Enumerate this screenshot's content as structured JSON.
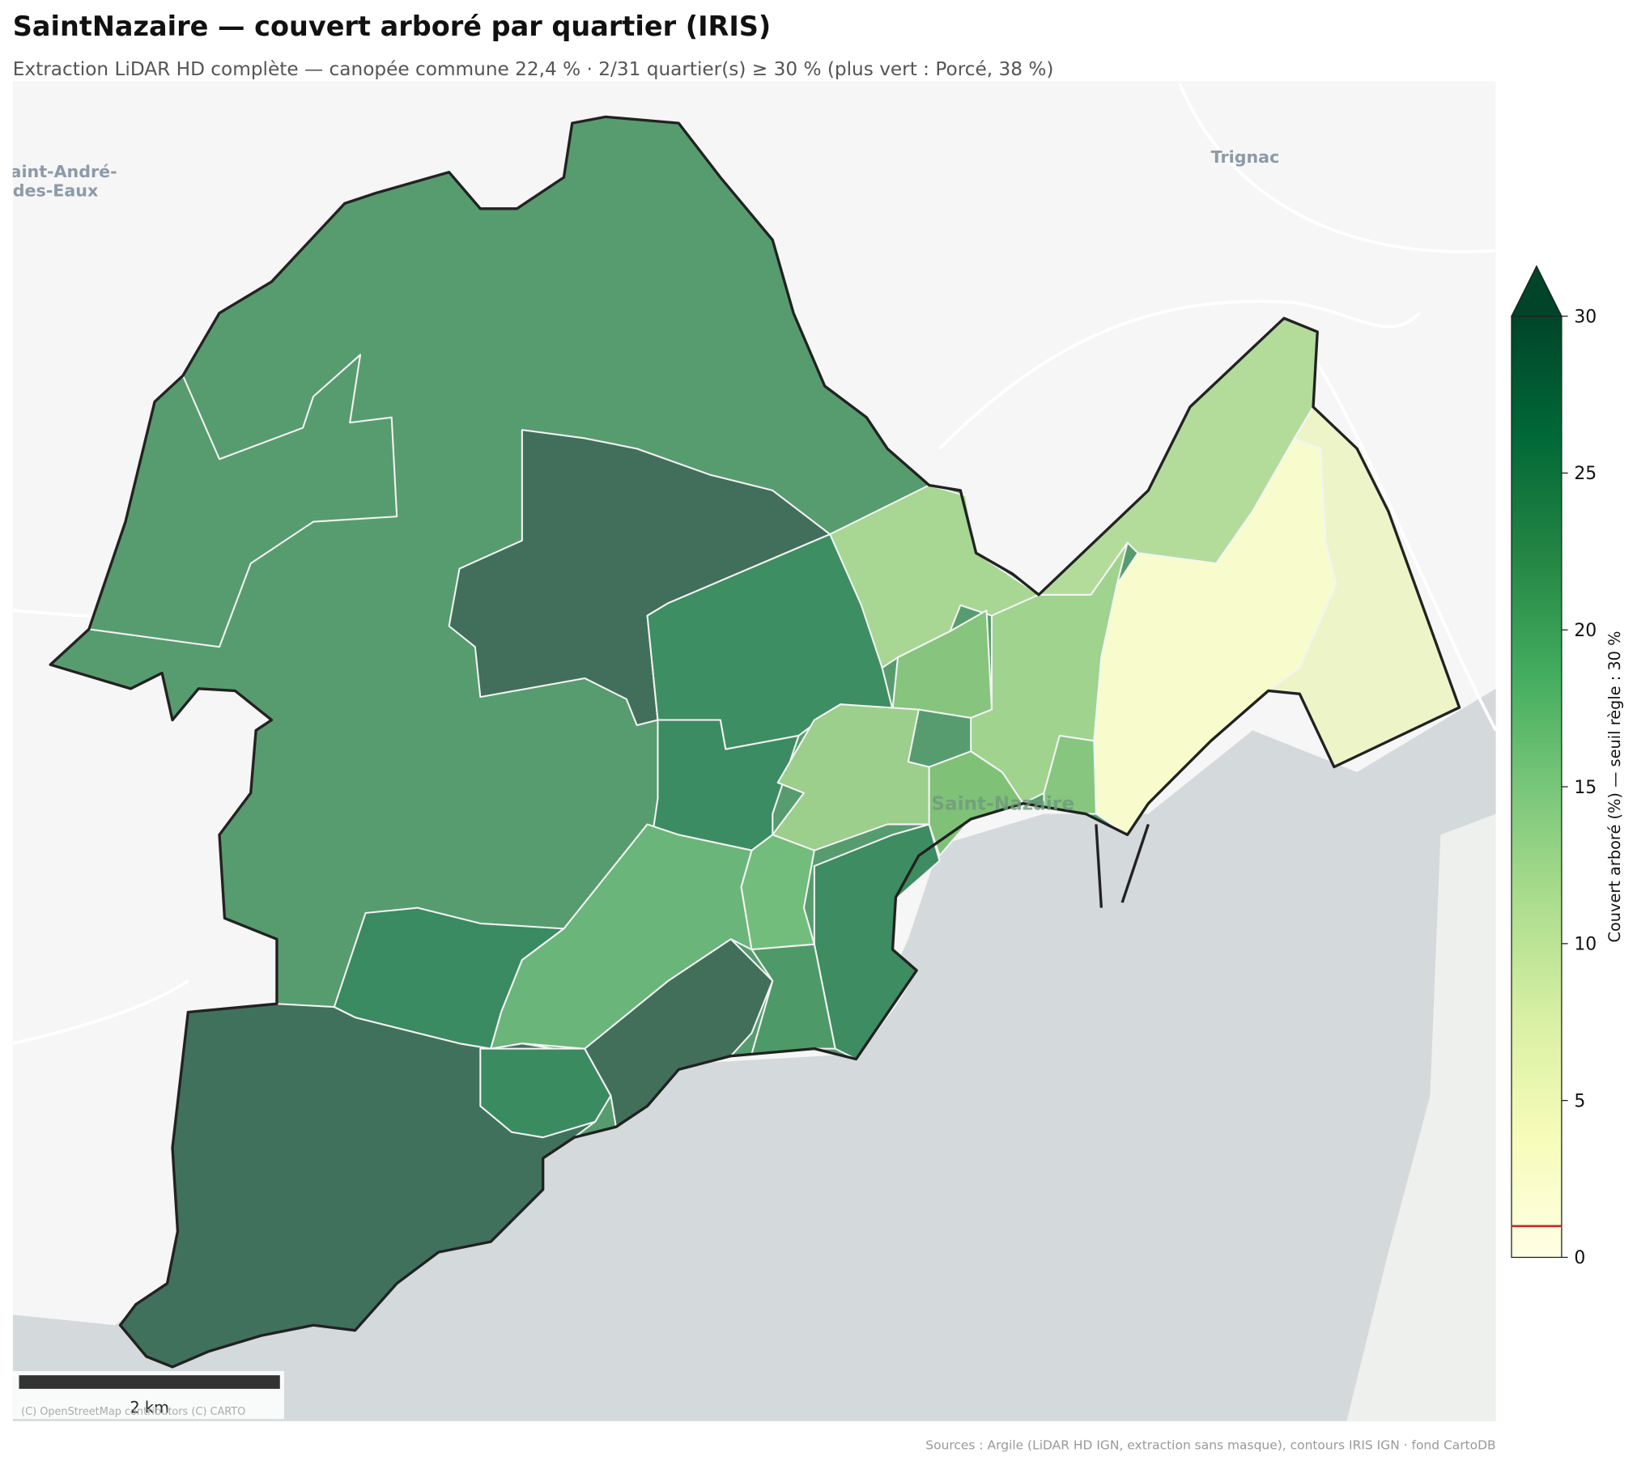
{
  "title": "SaintNazaire — couvert arboré par quartier (IRIS)",
  "subtitle": "Extraction LiDAR HD complète — canopée commune 22,4 % · 2/31 quartier(s) ≥ 30 % (plus vert : Porcé, 38 %)",
  "map": {
    "place_labels": [
      [
        "Saint-André-",
        "des-Eaux"
      ],
      [
        "Trignac"
      ],
      [
        "Saint-Nazaire"
      ]
    ]
  },
  "colorbar": {
    "label": "Couvert arboré (%) — seuil règle : 30 %",
    "lim": [
      0,
      30
    ],
    "ticks": [
      0,
      5,
      10,
      15,
      20,
      25,
      30
    ]
  },
  "scale_bar": "2 km",
  "attribution": "(C) OpenStreetMap contributors (C) CARTO",
  "sources": "Sources : Argile (LiDAR HD IGN, extraction sans masque), contours IRIS IGN · fond CartoDB"
}
